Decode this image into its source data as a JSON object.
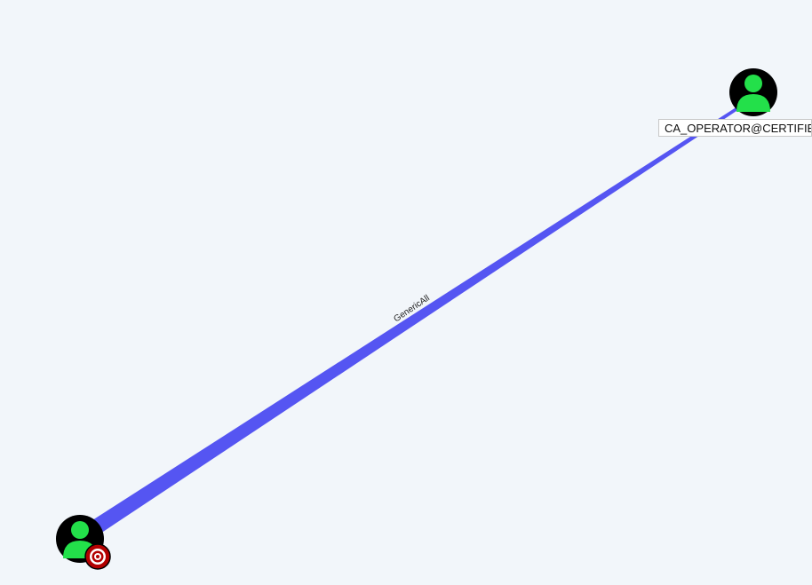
{
  "graph": {
    "edges": [
      {
        "label": "GenericAll",
        "color": "#5555f2"
      }
    ],
    "nodes": [
      {
        "label": "CA_OPERATOR@CERTIFIED",
        "icon": "user-icon",
        "is_target": false
      },
      {
        "label": "",
        "icon": "user-icon",
        "is_target": true,
        "badge_icon": "target-icon"
      }
    ]
  },
  "colors": {
    "background": "#f2f6fa",
    "node_fill": "#000000",
    "user_icon": "#23e04a",
    "edge": "#5555f2",
    "target_badge": "#b30000"
  }
}
